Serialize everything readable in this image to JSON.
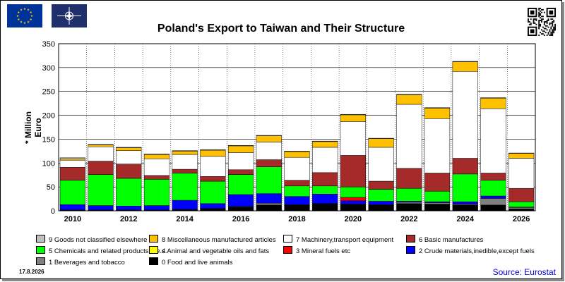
{
  "header": {
    "title": "Poland's Export to Taiwan and Their Structure",
    "date": "17.8.2026",
    "source": "Source: Eurostat",
    "eu_flag_icon": "eu-flag-icon",
    "nato_flag_icon": "nato-flag-icon",
    "qr_icon": "qr-code-icon"
  },
  "chart_data": {
    "type": "bar",
    "stacked": true,
    "title": "Poland's Export to Taiwan and Their Structure",
    "xlabel": "",
    "ylabel": "* Million Euro",
    "ylim": [
      0,
      350
    ],
    "y_ticks": [
      0,
      50,
      100,
      150,
      200,
      250,
      300,
      350
    ],
    "x_tick_labels": [
      "2010",
      "2012",
      "2014",
      "2016",
      "2018",
      "2020",
      "2022",
      "2024",
      "2026"
    ],
    "grid": true,
    "legend_position": "bottom",
    "categories": [
      "2010",
      "2011",
      "2012",
      "2013",
      "2014",
      "2015",
      "2016",
      "2017",
      "2018",
      "2019",
      "2020",
      "2021",
      "2022",
      "2023",
      "2024",
      "2025",
      "2026"
    ],
    "series": [
      {
        "name": "0 Food and live animals",
        "color": "#000000",
        "values": [
          2,
          2,
          2,
          2,
          3,
          5,
          8,
          12,
          12,
          15,
          14,
          12,
          15,
          14,
          12,
          12,
          4
        ]
      },
      {
        "name": "1 Beverages and tobacco",
        "color": "#808080",
        "values": [
          0,
          0,
          0,
          0,
          0,
          0,
          1,
          4,
          1,
          0,
          0,
          1,
          3,
          3,
          2,
          14,
          3
        ]
      },
      {
        "name": "2 Crude materials,inedible,except fuels",
        "color": "#0000ff",
        "values": [
          11,
          9,
          8,
          9,
          19,
          10,
          25,
          20,
          17,
          20,
          7,
          7,
          2,
          2,
          5,
          5,
          1
        ]
      },
      {
        "name": "3 Mineral fuels etc",
        "color": "#ff0000",
        "values": [
          0,
          0,
          0,
          0,
          0,
          0,
          0,
          0,
          0,
          0,
          7,
          0,
          0,
          0,
          0,
          0,
          0
        ]
      },
      {
        "name": "4 Animal and vegetable oils and fats",
        "color": "#ffff00",
        "values": [
          0,
          0,
          0,
          0,
          0,
          0,
          0,
          0,
          0,
          0,
          0,
          0,
          0,
          0,
          0,
          0,
          0
        ]
      },
      {
        "name": "5 Chemicals and related products,n.e.s.",
        "color": "#00ff00",
        "values": [
          51,
          65,
          58,
          55,
          57,
          47,
          42,
          56,
          22,
          17,
          22,
          25,
          27,
          22,
          58,
          33,
          11
        ]
      },
      {
        "name": "6 Basic manufactures",
        "color": "#a52a2a",
        "values": [
          27,
          28,
          30,
          8,
          8,
          10,
          10,
          15,
          12,
          28,
          66,
          17,
          42,
          38,
          33,
          15,
          28
        ]
      },
      {
        "name": "7 Machinery,transport equipment",
        "color": "#ffffff",
        "values": [
          15,
          30,
          28,
          35,
          31,
          42,
          36,
          37,
          48,
          53,
          71,
          71,
          134,
          114,
          182,
          135,
          63
        ]
      },
      {
        "name": "8 Miscellaneous manufactured articles",
        "color": "#ffc000",
        "values": [
          3,
          4,
          6,
          9,
          7,
          13,
          14,
          13,
          12,
          12,
          14,
          18,
          20,
          22,
          20,
          22,
          10
        ]
      },
      {
        "name": "9 Goods not classified elsewhere",
        "color": "#c0c0c0",
        "values": [
          2,
          1,
          1,
          1,
          1,
          1,
          1,
          1,
          1,
          1,
          1,
          1,
          1,
          1,
          1,
          1,
          1
        ]
      }
    ]
  }
}
